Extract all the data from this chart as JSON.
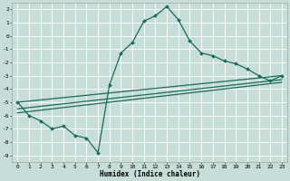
{
  "xlabel": "Humidex (Indice chaleur)",
  "bg_color": "#c6ddd8",
  "grid_color": "#ffffff",
  "line_color": "#1a6b5a",
  "xlim": [
    -0.5,
    23.5
  ],
  "ylim": [
    -9.5,
    2.5
  ],
  "xticks": [
    0,
    1,
    2,
    3,
    4,
    5,
    6,
    7,
    8,
    9,
    10,
    11,
    12,
    13,
    14,
    15,
    16,
    17,
    18,
    19,
    20,
    21,
    22,
    23
  ],
  "yticks": [
    2,
    1,
    0,
    -1,
    -2,
    -3,
    -4,
    -5,
    -6,
    -7,
    -8,
    -9
  ],
  "line1_x": [
    0,
    1,
    2,
    3,
    4,
    5,
    6,
    7,
    8,
    9,
    10,
    11,
    12,
    13,
    14,
    15,
    16,
    17,
    18,
    19,
    20,
    21,
    22,
    23
  ],
  "line1_y": [
    -5.0,
    -6.0,
    -6.4,
    -7.0,
    -6.8,
    -7.5,
    -7.7,
    -8.8,
    -3.7,
    -1.3,
    -0.5,
    1.1,
    1.5,
    2.2,
    1.2,
    -0.4,
    -1.3,
    -1.5,
    -1.9,
    -2.1,
    -2.5,
    -3.0,
    -3.4,
    -3.0
  ],
  "line2_x": [
    0,
    23
  ],
  "line2_y": [
    -5.0,
    -3.0
  ],
  "line3_x": [
    0,
    23
  ],
  "line3_y": [
    -5.5,
    -3.3
  ],
  "line4_x": [
    0,
    23
  ],
  "line4_y": [
    -5.8,
    -3.5
  ],
  "marker_style": "D",
  "marker_size": 2.0,
  "line_width": 0.9,
  "tick_fontsize": 4.5,
  "xlabel_fontsize": 5.5
}
